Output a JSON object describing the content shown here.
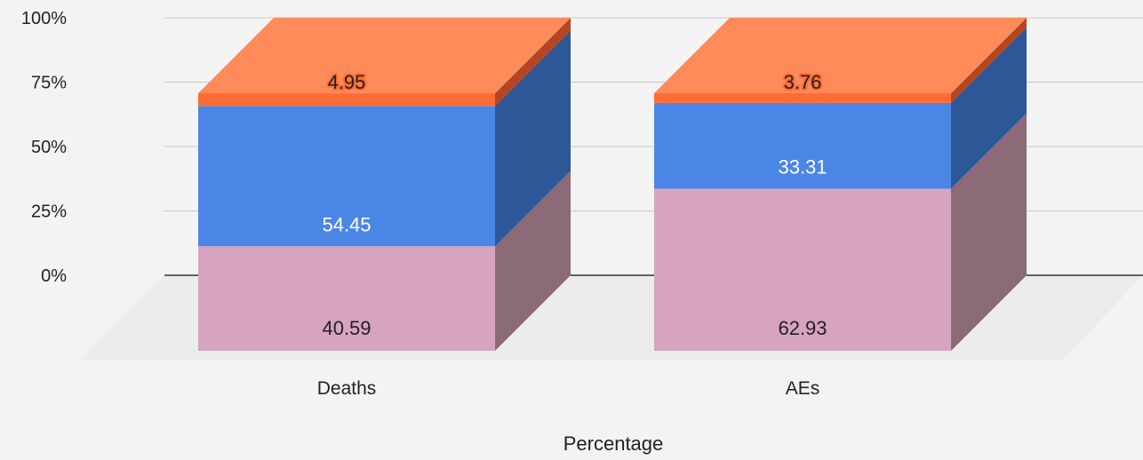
{
  "chart_data": {
    "type": "bar",
    "stacked": true,
    "three_d": true,
    "categories": [
      "Deaths",
      "AEs"
    ],
    "series": [
      {
        "values": [
          40.59,
          62.93
        ],
        "color": "#d6a4bf",
        "side_color": "#8a6b77",
        "top_color": "#e9bfd4",
        "label_color": "#222222"
      },
      {
        "values": [
          54.45,
          33.31
        ],
        "color": "#4a86e6",
        "side_color": "#2d5797",
        "top_color": "#6d9ff0",
        "label_color": "#ffffff"
      },
      {
        "values": [
          4.95,
          3.76
        ],
        "color": "#ff6c33",
        "side_color": "#b4471f",
        "top_color": "#ff8a5a",
        "label_color": "#222222"
      }
    ],
    "y_ticks": [
      "0%",
      "25%",
      "50%",
      "75%",
      "100%"
    ],
    "ylim": [
      0,
      100
    ],
    "xlabel": "Percentage",
    "ylabel": "",
    "title": "",
    "grid": true,
    "legend": "none"
  }
}
